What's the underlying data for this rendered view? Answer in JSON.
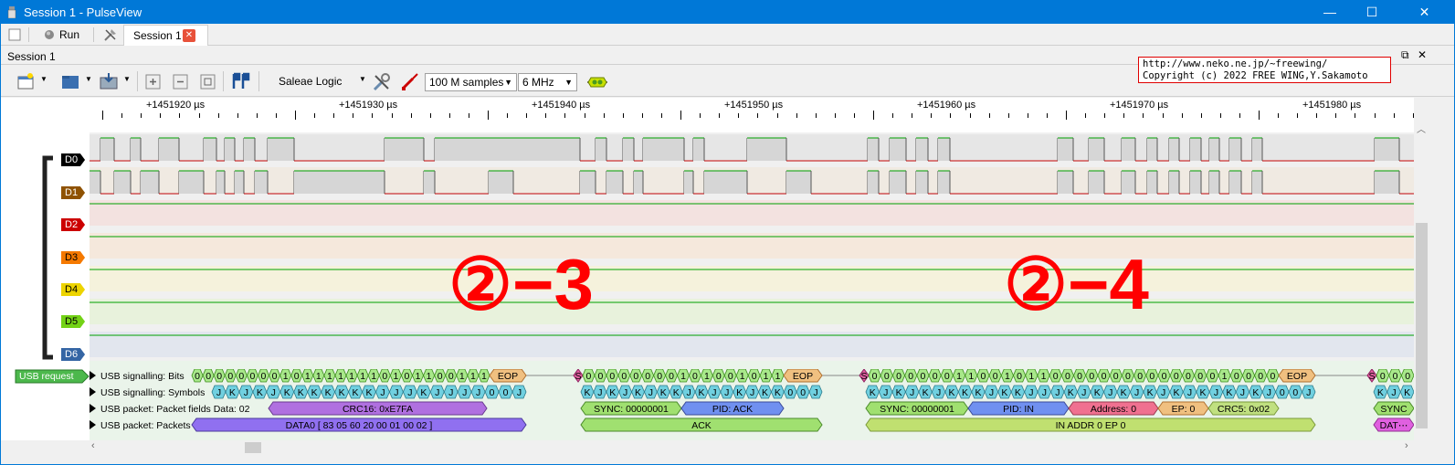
{
  "window": {
    "title": "Session 1 - PulseView",
    "minimize_glyph": "—",
    "maximize_glyph": "☐",
    "close_glyph": "✕"
  },
  "tabbar": {
    "run_label": "Run",
    "session_tab_label": "Session 1",
    "session_close_glyph": "✕"
  },
  "session_header": {
    "title": "Session 1",
    "float_glyph": "⧉",
    "close_glyph": "✕"
  },
  "toolbar": {
    "device": "Saleae Logic",
    "samples": "100 M samples",
    "samplerate": "6 MHz",
    "icons": [
      "new-session-icon",
      "open-icon",
      "save-icon",
      "zoom-in-icon",
      "zoom-out-icon",
      "zoom-fit-icon",
      "cursor-icon",
      "device-settings-icon",
      "probe-icon",
      "decoder-icon"
    ]
  },
  "copyright": {
    "line1": "http://www.neko.ne.jp/~freewing/",
    "line2": "Copyright (c) 2022 FREE WING,Y.Sakamoto"
  },
  "ruler": {
    "labels": [
      "+1451920 µs",
      "+1451930 µs",
      "+1451940 µs",
      "+1451950 µs",
      "+1451960 µs",
      "+1451970 µs",
      "+1451980 µs"
    ]
  },
  "channels": [
    {
      "name": "D0",
      "color": "#000000",
      "text_color": "#ffffff"
    },
    {
      "name": "D1",
      "color": "#8f5202",
      "text_color": "#ffffff"
    },
    {
      "name": "D2",
      "color": "#cc0000",
      "text_color": "#ffffff"
    },
    {
      "name": "D3",
      "color": "#f57900",
      "text_color": "#000000"
    },
    {
      "name": "D4",
      "color": "#edd400",
      "text_color": "#000000"
    },
    {
      "name": "D5",
      "color": "#73d216",
      "text_color": "#000000"
    },
    {
      "name": "D6",
      "color": "#3465a4",
      "text_color": "#ffffff"
    }
  ],
  "decoder": {
    "tag": "USB request",
    "rows": [
      "USB signalling: Bits",
      "USB signalling: Symbols",
      "USB packet: Packet fields Data: 02",
      "USB packet: Packets"
    ],
    "annotations": {
      "crc16": "CRC16: 0xE7FA",
      "data0": "DATA0 [ 83 05 60 20 00 01 00 02 ]",
      "sync1": "SYNC: 00000001",
      "pid_ack": "PID: ACK",
      "ack": "ACK",
      "sync2": "SYNC: 00000001",
      "pid_in": "PID: IN",
      "address": "Address: 0",
      "ep": "EP: 0",
      "crc5": "CRC5: 0x02",
      "in_addr": "IN ADDR 0 EP 0",
      "sync_tail": "SYNC",
      "dat_tail": "DAT⋯",
      "eop": "EOP",
      "bits_a": "0 0 0 0 0 0 0 0 1 0 1 1 1 1 1 1 1 0 1 0 1 1 0 0 1 1 1",
      "bits_b": "0 0 0 0 0 0 0 0 1 0 1 0 0 1 0 1 1",
      "bits_c": "0 0 0 0 0 0 0 1 1 0 0 1 0 1 1 0 0 0 0 0 0 0 0 0 0 0 0 0 0 1 0 0 0 0",
      "bits_d": "0 0 0",
      "syms_a": "J K J K J K K K K K K K J J J K J J J J 0 0 J",
      "syms_b": "K J K J K J K K J K J J K J K K 0 0 J",
      "syms_c": "K J K J K J K K K J K K J J J K J K J K J K J K J K J K J K J 0 0 J",
      "syms_d": "K J K",
      "s_marker": "S"
    }
  },
  "annotation_text": {
    "left": "②−3",
    "right": "②−4"
  },
  "colors": {
    "titlebar": "#0078d7",
    "trace_high": "#00a000",
    "trace_low": "#c00000",
    "highlight": "#ff0000"
  }
}
